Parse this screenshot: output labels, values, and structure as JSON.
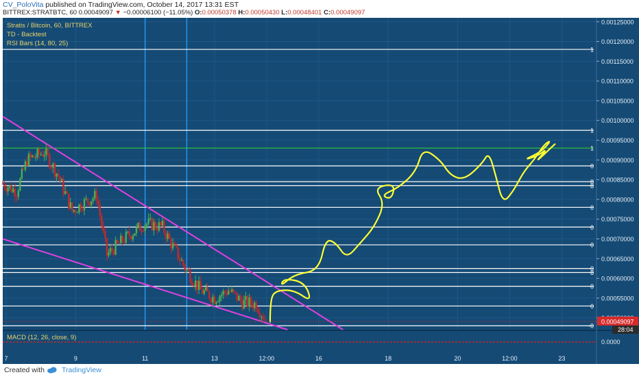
{
  "header": {
    "author": "CV_PoloVita",
    "published_text": "published on TradingView.com, October 14, 2017 13:31 EST",
    "symbol": "BITTREX:STRATBTC, 60",
    "last_price": "0.00049097",
    "change_arrow": "▼",
    "change": "−0.00006100 (−11.05%)",
    "open_label": "O:",
    "open": "0.00050378",
    "high_label": "H:",
    "high": "0.00050430",
    "low_label": "L:",
    "low": "0.00048401",
    "close_label": "C:",
    "close": "0.00049097"
  },
  "legend": {
    "title": "Stratis / Bitcoin, 60, BITTREX",
    "study1": "TD - Backtest",
    "study2": "RSI Bars (14, 80, 25)",
    "macd": "MACD (12, 26, close, 9)"
  },
  "colors": {
    "background": "#154a75",
    "up_candle": "#4caf50",
    "down_candle": "#c62828",
    "wedge": "#e040e0",
    "vline": "#2196f3",
    "hline": "#ffffff",
    "green_line": "#33cc33",
    "projection": "#ffff33",
    "price_tag": "#d62a2a",
    "zero_line": "#c62828"
  },
  "chart_data": {
    "type": "candlestick",
    "y_axis": {
      "ticks": [
        "0.00125000",
        "0.00120000",
        "0.00115000",
        "0.00110000",
        "0.00105000",
        "0.00100000",
        "0.00095000",
        "0.00090000",
        "0.00085000",
        "0.00080000",
        "0.00075000",
        "0.00070000",
        "0.00065000",
        "0.00060000",
        "0.00055000",
        "0.00050000"
      ],
      "range": [
        0.00047,
        0.00126
      ],
      "current_price": "0.00049097",
      "countdown": "28:04"
    },
    "x_axis": {
      "ticks": [
        {
          "label": "7",
          "value": 7
        },
        {
          "label": "9",
          "value": 9
        },
        {
          "label": "11",
          "value": 11
        },
        {
          "label": "13",
          "value": 13
        },
        {
          "label": "12:00",
          "value": 14.5
        },
        {
          "label": "16",
          "value": 16
        },
        {
          "label": "18",
          "value": 18
        },
        {
          "label": "20",
          "value": 20
        },
        {
          "label": "12:00",
          "value": 21.5
        },
        {
          "label": "23",
          "value": 23
        }
      ],
      "range": [
        6.9,
        24
      ]
    },
    "price_path": [
      [
        6.9,
        0.00084
      ],
      [
        7.3,
        0.00082
      ],
      [
        7.6,
        0.0009
      ],
      [
        8.1,
        0.00092
      ],
      [
        8.5,
        0.00086
      ],
      [
        8.9,
        0.00077
      ],
      [
        9.2,
        0.00079
      ],
      [
        9.6,
        0.00081
      ],
      [
        9.9,
        0.00066
      ],
      [
        10.4,
        0.0007
      ],
      [
        11.0,
        0.00074
      ],
      [
        11.5,
        0.00073
      ],
      [
        11.8,
        0.00068
      ],
      [
        12.2,
        0.00062
      ],
      [
        12.6,
        0.00057
      ],
      [
        13.0,
        0.00055
      ],
      [
        13.4,
        0.00057
      ],
      [
        13.8,
        0.00054
      ],
      [
        14.2,
        0.000535
      ],
      [
        14.5,
        0.00049
      ]
    ],
    "horizontal_levels": [
      {
        "value": 0.00118,
        "label": "1"
      },
      {
        "value": 0.000975,
        "label": "1"
      },
      {
        "value": 0.00093,
        "label": "1",
        "color": "green"
      },
      {
        "value": 0.000885,
        "label": "0"
      },
      {
        "value": 0.000845,
        "label": "8"
      },
      {
        "value": 0.000835,
        "label": "8"
      },
      {
        "value": 0.00078,
        "label": "0"
      },
      {
        "value": 0.00073,
        "label": "0"
      },
      {
        "value": 0.000685,
        "label": "0"
      },
      {
        "value": 0.000625,
        "label": "0"
      },
      {
        "value": 0.000615,
        "label": "8"
      },
      {
        "value": 0.00058,
        "label": "0"
      },
      {
        "value": 0.00053,
        "label": "0"
      },
      {
        "value": 0.00048,
        "label": "-0"
      }
    ],
    "vertical_lines": [
      11.0,
      12.2
    ],
    "wedge_lines": [
      [
        [
          6.9,
          0.00101
        ],
        [
          16.7,
          0.00047
        ]
      ],
      [
        [
          6.9,
          0.0007
        ],
        [
          15.1,
          0.00047
        ]
      ]
    ],
    "projection_path": [
      [
        14.6,
        0.00049
      ],
      [
        14.6,
        0.00055
      ],
      [
        14.8,
        0.00057
      ],
      [
        15.3,
        0.00057
      ],
      [
        15.8,
        0.00054
      ],
      [
        15.6,
        0.00059
      ],
      [
        15.0,
        0.0006
      ],
      [
        14.9,
        0.00058
      ],
      [
        15.3,
        0.00061
      ],
      [
        16.0,
        0.00062
      ],
      [
        16.2,
        0.0007
      ],
      [
        16.5,
        0.00069
      ],
      [
        16.8,
        0.00065
      ],
      [
        17.2,
        0.00069
      ],
      [
        17.6,
        0.00073
      ],
      [
        17.9,
        0.00079
      ],
      [
        17.6,
        0.00083
      ],
      [
        18.2,
        0.00084
      ],
      [
        18.1,
        0.0008
      ],
      [
        17.8,
        0.00081
      ],
      [
        18.3,
        0.00083
      ],
      [
        18.8,
        0.00087
      ],
      [
        19.0,
        0.00093
      ],
      [
        19.5,
        0.0009
      ],
      [
        19.8,
        0.00086
      ],
      [
        20.2,
        0.00085
      ],
      [
        20.7,
        0.00089
      ],
      [
        20.9,
        0.00092
      ],
      [
        21.1,
        0.00086
      ],
      [
        21.3,
        0.00079
      ],
      [
        21.6,
        0.00082
      ],
      [
        21.9,
        0.00087
      ],
      [
        22.2,
        0.0009
      ],
      [
        22.5,
        0.00094
      ],
      [
        22.7,
        0.00095
      ],
      [
        22.4,
        0.00092
      ],
      [
        21.9,
        0.0009
      ],
      [
        22.3,
        0.00091
      ],
      [
        22.6,
        0.00093
      ],
      [
        22.2,
        0.00089
      ],
      [
        22.8,
        0.00094
      ]
    ],
    "macd_zero": "0.0000"
  },
  "footer": {
    "created_with": "Created with",
    "brand": "TradingView"
  }
}
